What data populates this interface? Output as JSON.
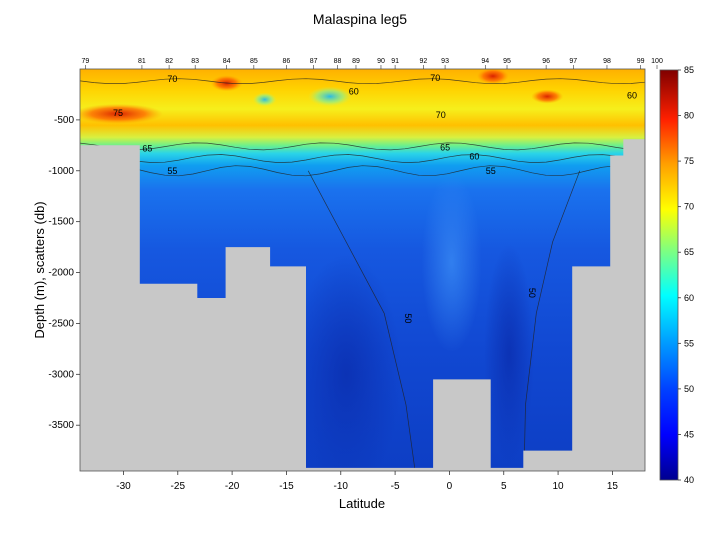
{
  "chart_data": {
    "type": "heatmap",
    "title": "Malaspina leg5",
    "xlabel": "Latitude",
    "ylabel": "Depth (m), scatters (db)",
    "xlim": [
      -34,
      18
    ],
    "ylim": [
      -3950,
      0
    ],
    "x_ticks": [
      -30,
      -25,
      -20,
      -15,
      -10,
      -5,
      0,
      5,
      10,
      15
    ],
    "y_ticks": [
      -500,
      -1000,
      -1500,
      -2000,
      -2500,
      -3000,
      -3500
    ],
    "colorbar": {
      "min": 40,
      "max": 85,
      "ticks": [
        40,
        45,
        50,
        55,
        60,
        65,
        70,
        75,
        80,
        85
      ],
      "colormap": "jet"
    },
    "stations": [
      {
        "label": "79",
        "lat": -33.5
      },
      {
        "label": "81",
        "lat": -28.3
      },
      {
        "label": "82",
        "lat": -25.8
      },
      {
        "label": "83",
        "lat": -23.4
      },
      {
        "label": "84",
        "lat": -20.5
      },
      {
        "label": "85",
        "lat": -18.0
      },
      {
        "label": "86",
        "lat": -15.0
      },
      {
        "label": "87",
        "lat": -12.5
      },
      {
        "label": "88",
        "lat": -10.3
      },
      {
        "label": "89",
        "lat": -8.6
      },
      {
        "label": "90",
        "lat": -6.3
      },
      {
        "label": "91",
        "lat": -5.0
      },
      {
        "label": "92",
        "lat": -2.4
      },
      {
        "label": "93",
        "lat": -0.4
      },
      {
        "label": "94",
        "lat": 3.3
      },
      {
        "label": "95",
        "lat": 5.3
      },
      {
        "label": "96",
        "lat": 8.9
      },
      {
        "label": "97",
        "lat": 11.4
      },
      {
        "label": "98",
        "lat": 14.5
      },
      {
        "label": "99",
        "lat": 17.6
      },
      {
        "label": "100",
        "lat": 20.2
      }
    ],
    "bathymetry": [
      {
        "lat": -34,
        "depth": -750
      },
      {
        "lat": -28.5,
        "depth": -750
      },
      {
        "lat": -28.5,
        "depth": -2110
      },
      {
        "lat": -23.2,
        "depth": -2110
      },
      {
        "lat": -23.2,
        "depth": -2250
      },
      {
        "lat": -20.6,
        "depth": -2250
      },
      {
        "lat": -20.6,
        "depth": -1750
      },
      {
        "lat": -16.5,
        "depth": -1750
      },
      {
        "lat": -16.5,
        "depth": -1940
      },
      {
        "lat": -13.2,
        "depth": -1940
      },
      {
        "lat": -13.2,
        "depth": -3920
      },
      {
        "lat": -1.5,
        "depth": -3920
      },
      {
        "lat": -1.5,
        "depth": -3050
      },
      {
        "lat": 3.8,
        "depth": -3050
      },
      {
        "lat": 3.8,
        "depth": -3920
      },
      {
        "lat": 6.8,
        "depth": -3920
      },
      {
        "lat": 6.8,
        "depth": -3750
      },
      {
        "lat": 11.3,
        "depth": -3750
      },
      {
        "lat": 11.3,
        "depth": -1940
      },
      {
        "lat": 14.8,
        "depth": -1940
      },
      {
        "lat": 14.8,
        "depth": -850
      },
      {
        "lat": 16.0,
        "depth": -850
      },
      {
        "lat": 16.0,
        "depth": -690
      },
      {
        "lat": 18,
        "depth": -690
      }
    ],
    "field_description": "Variable in 40-85 range: high values (65-80) in upper ~700 m, sharp drop across 55-65 contours near 800-1000 m, 45-52 in deep water with lowest values near -10 latitude below 2500 m.",
    "contour_labels": [
      {
        "text": "70",
        "lat": -25.5,
        "depth": -100
      },
      {
        "text": "75",
        "lat": -30.5,
        "depth": -430
      },
      {
        "text": "65",
        "lat": -27.8,
        "depth": -780
      },
      {
        "text": "55",
        "lat": -25.5,
        "depth": -1000
      },
      {
        "text": "60",
        "lat": -8.8,
        "depth": -220
      },
      {
        "text": "70",
        "lat": -1.3,
        "depth": -90
      },
      {
        "text": "70",
        "lat": -0.8,
        "depth": -450
      },
      {
        "text": "65",
        "lat": -0.4,
        "depth": -770
      },
      {
        "text": "60",
        "lat": 2.3,
        "depth": -860
      },
      {
        "text": "55",
        "lat": 3.8,
        "depth": -1000
      },
      {
        "text": "60",
        "lat": 16.8,
        "depth": -260
      },
      {
        "text": "50",
        "lat": -3.8,
        "depth": -2450
      },
      {
        "text": "50",
        "lat": 7.6,
        "depth": -2200
      }
    ]
  }
}
